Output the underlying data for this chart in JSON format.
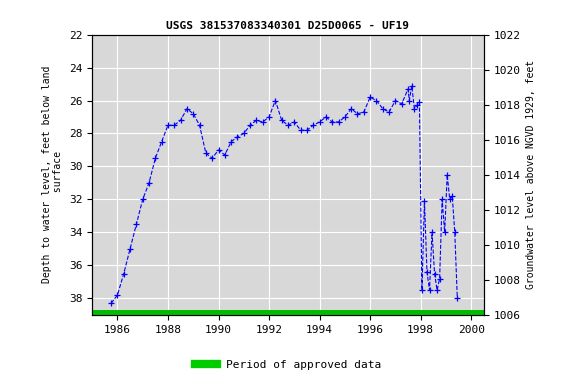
{
  "title": "USGS 381537083340301 D25D0065 - UF19",
  "ylabel_left": "Depth to water level, feet below land\n surface",
  "ylabel_right": "Groundwater level above NGVD 1929, feet",
  "ylim_left": [
    22,
    39
  ],
  "ylim_right": [
    1006,
    1022
  ],
  "xlim": [
    1985.0,
    2000.5
  ],
  "xticks": [
    1986,
    1988,
    1990,
    1992,
    1994,
    1996,
    1998,
    2000
  ],
  "yticks_left": [
    22,
    24,
    26,
    28,
    30,
    32,
    34,
    36,
    38
  ],
  "yticks_right": [
    1006,
    1008,
    1010,
    1012,
    1014,
    1016,
    1018,
    1020,
    1022
  ],
  "line_color": "#0000FF",
  "background_color": "#ffffff",
  "plot_bg_color": "#d8d8d8",
  "grid_color": "#ffffff",
  "legend_label": "Period of approved data",
  "legend_color": "#00cc00",
  "approved_bar_color": "#00bb00",
  "data_x": [
    1985.75,
    1986.0,
    1986.25,
    1986.5,
    1986.75,
    1987.0,
    1987.25,
    1987.5,
    1987.75,
    1988.0,
    1988.25,
    1988.5,
    1988.75,
    1989.0,
    1989.25,
    1989.5,
    1989.75,
    1990.0,
    1990.25,
    1990.5,
    1990.75,
    1991.0,
    1991.25,
    1991.5,
    1991.75,
    1992.0,
    1992.25,
    1992.5,
    1992.75,
    1993.0,
    1993.25,
    1993.5,
    1993.75,
    1994.0,
    1994.25,
    1994.5,
    1994.75,
    1995.0,
    1995.25,
    1995.5,
    1995.75,
    1996.0,
    1996.25,
    1996.5,
    1996.75,
    1997.0,
    1997.25,
    1997.5,
    1997.55,
    1997.65,
    1997.75,
    1997.85,
    1997.95,
    1998.05,
    1998.15,
    1998.25,
    1998.35,
    1998.45,
    1998.55,
    1998.65,
    1998.75,
    1998.85,
    1998.95,
    1999.05,
    1999.15,
    1999.25,
    1999.35,
    1999.45
  ],
  "data_y": [
    38.3,
    37.8,
    36.5,
    35.0,
    33.5,
    32.0,
    31.0,
    29.5,
    28.5,
    27.5,
    27.5,
    27.2,
    26.5,
    26.8,
    27.5,
    29.2,
    29.5,
    29.0,
    29.3,
    28.5,
    28.2,
    28.0,
    27.5,
    27.2,
    27.3,
    27.0,
    26.0,
    27.2,
    27.5,
    27.3,
    27.8,
    27.8,
    27.5,
    27.3,
    27.0,
    27.3,
    27.3,
    27.0,
    26.5,
    26.8,
    26.7,
    25.8,
    26.0,
    26.5,
    26.7,
    26.0,
    26.2,
    25.3,
    26.0,
    25.1,
    26.5,
    26.3,
    26.1,
    37.5,
    32.1,
    36.4,
    37.5,
    34.0,
    36.5,
    37.5,
    36.8,
    32.0,
    34.0,
    30.5,
    32.0,
    31.8,
    34.0,
    38.0
  ]
}
